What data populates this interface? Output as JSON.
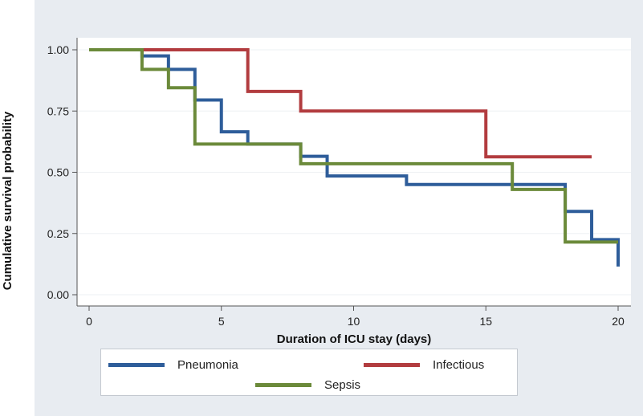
{
  "chart_data": {
    "type": "line",
    "step": true,
    "xlabel": "Duration of ICU stay (days)",
    "ylabel": "Cumulative survival probability",
    "xlim": [
      0,
      20
    ],
    "ylim": [
      0,
      1
    ],
    "xticks": [
      "0",
      "5",
      "10",
      "15",
      "20"
    ],
    "yticks": [
      "0.00",
      "0.25",
      "0.50",
      "0.75",
      "1.00"
    ],
    "grid": true,
    "legend_position": "bottom",
    "series": [
      {
        "name": "Pneumonia",
        "color": "#2e5d9a",
        "x": [
          0,
          2,
          3,
          4,
          5,
          6,
          8,
          9,
          12,
          18,
          19,
          20
        ],
        "y": [
          1.0,
          0.975,
          0.92,
          0.795,
          0.665,
          0.615,
          0.565,
          0.485,
          0.45,
          0.34,
          0.225,
          0.115
        ]
      },
      {
        "name": "Infectious",
        "color": "#b23c3f",
        "x": [
          0,
          6,
          8,
          15,
          19
        ],
        "y": [
          1.0,
          0.83,
          0.75,
          0.563,
          0.563
        ]
      },
      {
        "name": "Sepsis",
        "color": "#6b8a3a",
        "x": [
          0,
          2,
          3,
          4,
          8,
          16,
          18,
          20
        ],
        "y": [
          1.0,
          0.92,
          0.845,
          0.615,
          0.535,
          0.43,
          0.215,
          0.215
        ]
      }
    ]
  }
}
